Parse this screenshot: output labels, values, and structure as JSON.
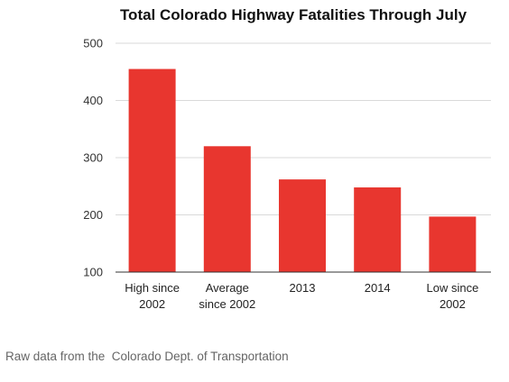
{
  "chart_data": {
    "type": "bar",
    "title": "Total Colorado Highway Fatalities Through July",
    "categories": [
      [
        "High since",
        "2002"
      ],
      [
        "Average",
        "since 2002"
      ],
      [
        "2013"
      ],
      [
        "2014"
      ],
      [
        "Low since",
        "2002"
      ]
    ],
    "values": [
      455,
      320,
      262,
      248,
      197
    ],
    "ylim": [
      100,
      500
    ],
    "yticks": [
      100,
      200,
      300,
      400,
      500
    ],
    "grid": true,
    "bar_color": "#e8362f",
    "xlabel": "",
    "ylabel": ""
  },
  "footer": {
    "source": "Raw data from the  Colorado Dept. of Transportation"
  }
}
